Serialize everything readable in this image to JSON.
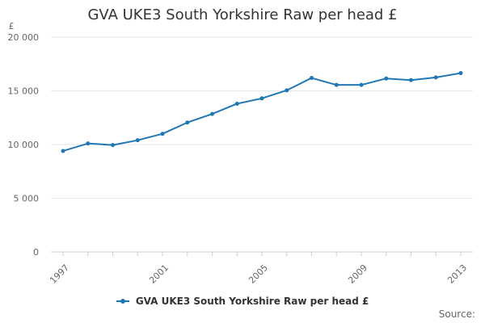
{
  "chart_data": {
    "type": "line",
    "title": "GVA UKE3 South Yorkshire Raw per head £",
    "ylabel": "£",
    "xlabel": "",
    "x": [
      1997,
      1998,
      1999,
      2000,
      2001,
      2002,
      2003,
      2004,
      2005,
      2006,
      2007,
      2008,
      2009,
      2010,
      2011,
      2012,
      2013
    ],
    "x_tick_labels": [
      "1997",
      "2001",
      "2005",
      "2009",
      "2013"
    ],
    "y_tick_values": [
      0,
      5000,
      10000,
      15000,
      20000
    ],
    "y_tick_labels": [
      "0",
      "5 000",
      "10 000",
      "15 000",
      "20 000"
    ],
    "ylim": [
      0,
      20000
    ],
    "grid": true,
    "legend_position": "bottom",
    "series": [
      {
        "name": "GVA UKE3 South Yorkshire Raw per head £",
        "color": "#1f77b4",
        "values": [
          9400,
          10100,
          9950,
          10400,
          11000,
          12050,
          12850,
          13800,
          14300,
          15050,
          16200,
          15550,
          15550,
          16150,
          16000,
          16250,
          16650
        ]
      }
    ]
  },
  "footer": {
    "source_label": "Source:"
  }
}
